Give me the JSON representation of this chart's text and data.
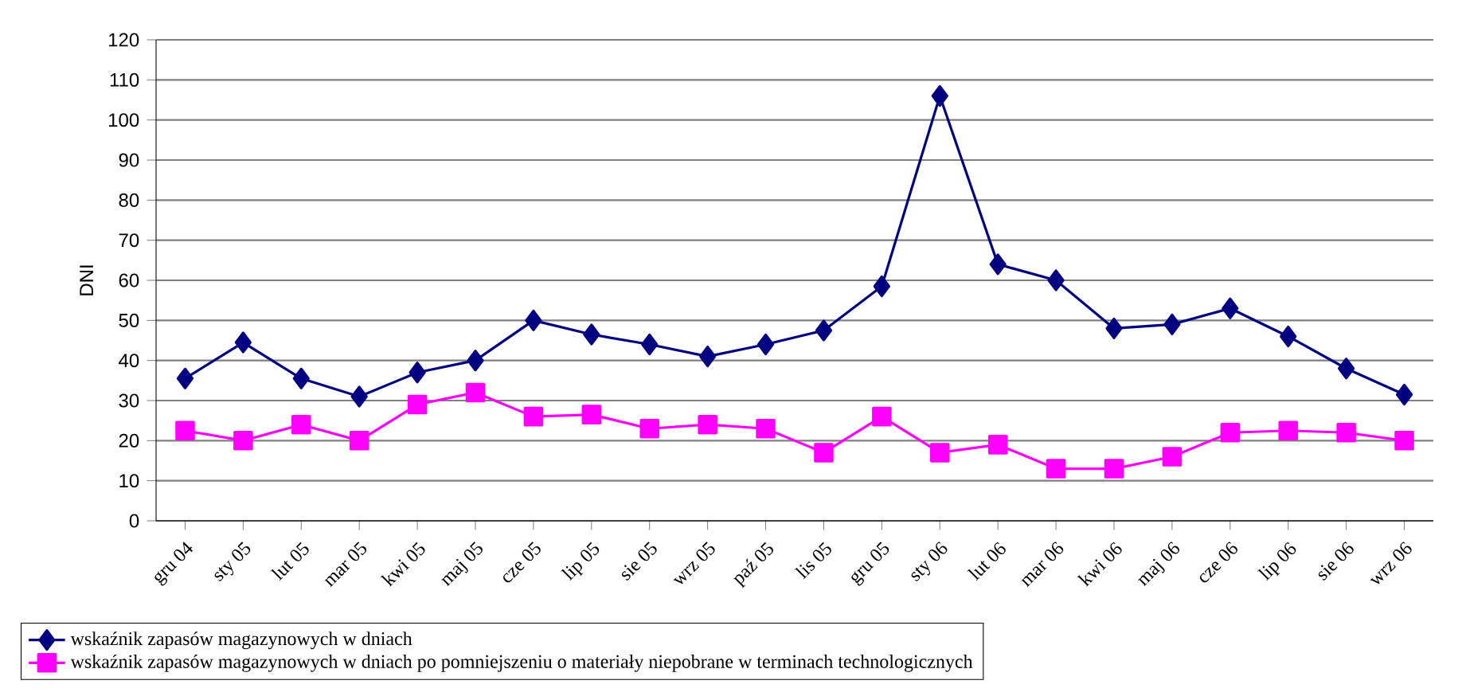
{
  "chart_data": {
    "type": "line",
    "ylabel": "DNI",
    "categories": [
      "gru 04",
      "sty 05",
      "lut 05",
      "mar 05",
      "kwi 05",
      "maj 05",
      "cze 05",
      "lip 05",
      "sie 05",
      "wrz 05",
      "paź 05",
      "lis 05",
      "gru 05",
      "sty 06",
      "lut 06",
      "mar 06",
      "kwi 06",
      "maj 06",
      "cze 06",
      "lip 06",
      "sie 06",
      "wrz 06"
    ],
    "series": [
      {
        "name": "wskaźnik zapasów magazynowych w dniach",
        "color": "#000080",
        "marker": "diamond",
        "values": [
          35.5,
          44.5,
          35.5,
          31,
          37,
          40,
          50,
          46.5,
          44,
          41,
          44,
          47.5,
          58.5,
          106,
          64,
          60,
          48,
          49,
          53,
          46,
          38,
          31.5
        ]
      },
      {
        "name": "wskaźnik zapasów magazynowych w dniach po pomniejszeniu o materiały niepobrane w terminach technologicznych",
        "color": "#ff00ff",
        "marker": "square",
        "values": [
          22.5,
          20,
          24,
          20,
          29,
          32,
          26,
          26.5,
          23,
          24,
          23,
          17,
          26,
          17,
          19,
          13,
          13,
          16,
          22,
          22.5,
          22,
          20
        ]
      }
    ],
    "ylim": [
      0,
      120
    ],
    "yticks": [
      0,
      10,
      20,
      30,
      40,
      50,
      60,
      70,
      80,
      90,
      100,
      110,
      120
    ],
    "grid": "y",
    "legend": "bottom"
  }
}
